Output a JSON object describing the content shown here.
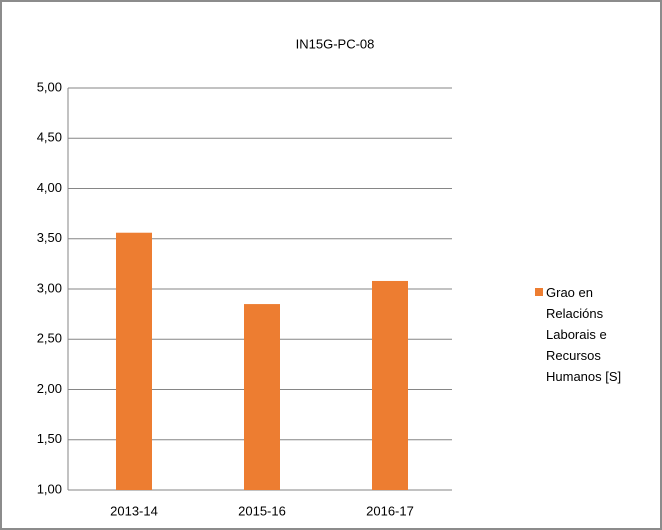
{
  "chart_data": {
    "type": "bar",
    "title": "IN15G-PC-08",
    "categories": [
      "2013-14",
      "2015-16",
      "2016-17"
    ],
    "series": [
      {
        "name": "Grao en Relacións Laborais e Recursos Humanos [S]",
        "color": "#ed7d31",
        "values": [
          3.56,
          2.85,
          3.08
        ]
      }
    ],
    "ylim": [
      1,
      5
    ],
    "yticks": [
      {
        "value": 1,
        "label": "1,00"
      },
      {
        "value": 1.5,
        "label": "1,50"
      },
      {
        "value": 2,
        "label": "2,00"
      },
      {
        "value": 2.5,
        "label": "2,50"
      },
      {
        "value": 3,
        "label": "3,00"
      },
      {
        "value": 3.5,
        "label": "3,50"
      },
      {
        "value": 4,
        "label": "4,00"
      },
      {
        "value": 4.5,
        "label": "4,50"
      },
      {
        "value": 5,
        "label": "5,00"
      }
    ],
    "grid": true,
    "legend": "right"
  }
}
